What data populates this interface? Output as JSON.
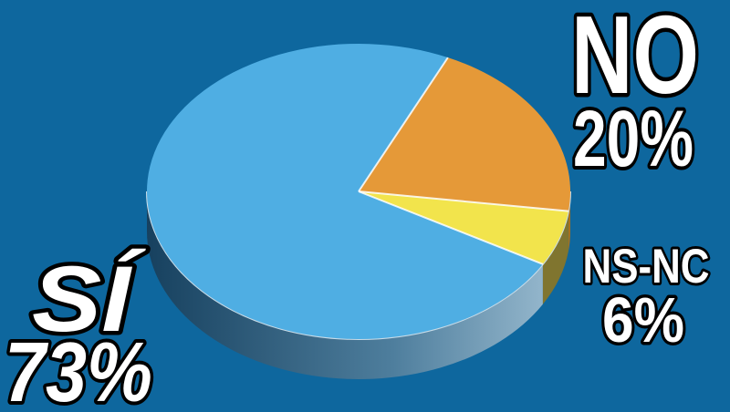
{
  "background_color": "#0E679E",
  "labels": {
    "si": {
      "name": "SÍ",
      "percent": "73%"
    },
    "no": {
      "name": "NO",
      "percent": "20%"
    },
    "nsnc": {
      "name": "NS-NC",
      "percent": "6%"
    }
  },
  "chart_data": {
    "type": "pie",
    "style": "3d-extruded",
    "title": "",
    "categories": [
      "SÍ",
      "NO",
      "NS-NC"
    ],
    "values": [
      73,
      20,
      6
    ],
    "unit": "%",
    "slices": [
      {
        "label": "SÍ",
        "value": 73,
        "display": "73%",
        "color": "#4FAEE3",
        "side": "gradient"
      },
      {
        "label": "NO",
        "value": 20,
        "display": "20%",
        "color": "#E59938",
        "side": "#A8711F"
      },
      {
        "label": "NS-NC",
        "value": 6,
        "display": "6%",
        "color": "#F2E44C",
        "side": "#80752F"
      }
    ],
    "side_gradient": [
      "#17415F",
      "#4E7E9D",
      "#9FBFD3"
    ],
    "edge_highlight_color": "#C9DCE8",
    "separator_color": "#FFFFFF",
    "label_text_color": "#FFFFFF",
    "label_outline_color": "#000000",
    "start_angle_deg": 29.5,
    "legend": "none",
    "labels_position": "outside"
  }
}
